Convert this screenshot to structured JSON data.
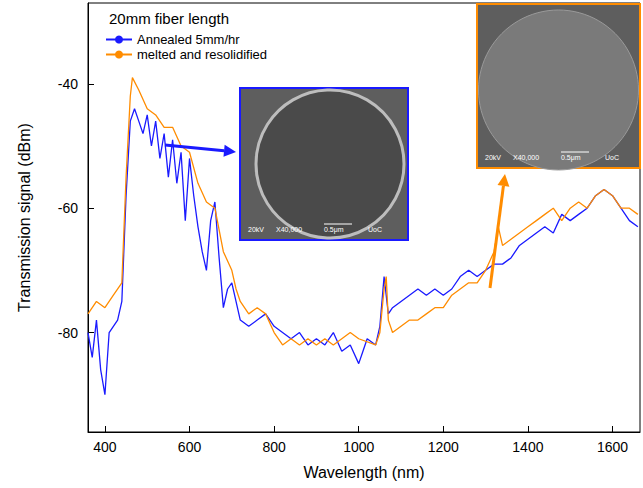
{
  "chart_data": {
    "type": "line",
    "title": "20mm fiber length",
    "x_label": "Wavelength (nm)",
    "y_label": "Transmission signal (dBm)",
    "xlim": [
      360,
      1665
    ],
    "xticks": [
      400,
      600,
      800,
      1000,
      1200,
      1400,
      1600
    ],
    "ylim": [
      -96,
      -27
    ],
    "yticks": [
      -80,
      -60,
      -40
    ],
    "grid": false,
    "legend": "upper left",
    "series": [
      {
        "name": "Annealed 5mm/hr",
        "color": "#1a1aff",
        "x": [
          360,
          370,
          380,
          390,
          400,
          410,
          420,
          430,
          440,
          450,
          460,
          470,
          480,
          490,
          500,
          510,
          520,
          530,
          540,
          550,
          560,
          570,
          580,
          590,
          600,
          610,
          620,
          630,
          640,
          650,
          660,
          670,
          680,
          690,
          700,
          720,
          740,
          760,
          780,
          800,
          820,
          840,
          860,
          880,
          900,
          920,
          940,
          960,
          980,
          1000,
          1010,
          1020,
          1040,
          1050,
          1060,
          1070,
          1080,
          1100,
          1120,
          1140,
          1160,
          1180,
          1200,
          1220,
          1240,
          1260,
          1280,
          1300,
          1320,
          1340,
          1360,
          1380,
          1400,
          1420,
          1440,
          1460,
          1480,
          1500,
          1520,
          1540,
          1560,
          1580,
          1600,
          1620,
          1640,
          1660
        ],
        "values": [
          -80,
          -84,
          -78,
          -86,
          -90,
          -80,
          -79,
          -78,
          -75,
          -58,
          -46,
          -44,
          -46,
          -48,
          -45,
          -50,
          -46,
          -52,
          -48,
          -55,
          -49,
          -56,
          -51,
          -62,
          -52,
          -58,
          -63,
          -67,
          -70,
          -62,
          -59,
          -68,
          -76,
          -73,
          -72,
          -78,
          -79,
          -78,
          -77,
          -79,
          -80,
          -81,
          -80,
          -82,
          -81,
          -82,
          -80,
          -83,
          -82,
          -85,
          -83,
          -81,
          -82,
          -79,
          -71,
          -77,
          -76,
          -75,
          -74,
          -73,
          -74,
          -73,
          -74,
          -73,
          -71,
          -70,
          -71,
          -70,
          -69,
          -69,
          -68,
          -66,
          -65,
          -64,
          -63,
          -64,
          -61,
          -62,
          -61,
          -60,
          -58,
          -57,
          -58,
          -60,
          -62,
          -63
        ]
      },
      {
        "name": "melted and resolidified",
        "color": "#ff8c00",
        "x": [
          360,
          380,
          400,
          420,
          440,
          450,
          460,
          465,
          480,
          500,
          520,
          540,
          560,
          580,
          600,
          620,
          640,
          660,
          680,
          700,
          710,
          720,
          740,
          760,
          780,
          800,
          820,
          840,
          860,
          880,
          900,
          920,
          940,
          960,
          980,
          1000,
          1040,
          1050,
          1060,
          1065,
          1070,
          1080,
          1100,
          1120,
          1140,
          1160,
          1180,
          1200,
          1220,
          1240,
          1260,
          1280,
          1300,
          1320,
          1330,
          1340,
          1360,
          1380,
          1400,
          1420,
          1440,
          1460,
          1480,
          1500,
          1520,
          1540,
          1560,
          1580,
          1600,
          1620,
          1640,
          1660
        ],
        "values": [
          -77,
          -75,
          -76,
          -74,
          -72,
          -55,
          -42,
          -39,
          -41,
          -44,
          -45,
          -47,
          -47,
          -50,
          -51,
          -56,
          -59,
          -60,
          -67,
          -70,
          -73,
          -75,
          -77,
          -76,
          -77,
          -80,
          -82,
          -81,
          -82,
          -81,
          -82,
          -81,
          -82,
          -81,
          -80,
          -81,
          -82,
          -80,
          -73,
          -71,
          -78,
          -80,
          -79,
          -78,
          -78,
          -77,
          -76,
          -76,
          -74,
          -73,
          -72,
          -72,
          -70,
          -67,
          -63,
          -66,
          -65,
          -64,
          -63,
          -62,
          -61,
          -60,
          -62,
          -60,
          -59,
          -60,
          -58,
          -57,
          -58,
          -60,
          -60,
          -61
        ]
      }
    ],
    "insets": [
      {
        "series": "Annealed 5mm/hr",
        "texts": [
          "20kV",
          "X40,000",
          "0.5μm",
          "UoC"
        ]
      },
      {
        "series": "melted and resolidified",
        "texts": [
          "20kV",
          "X40,000",
          "0.5μm",
          "UoC"
        ]
      }
    ]
  }
}
